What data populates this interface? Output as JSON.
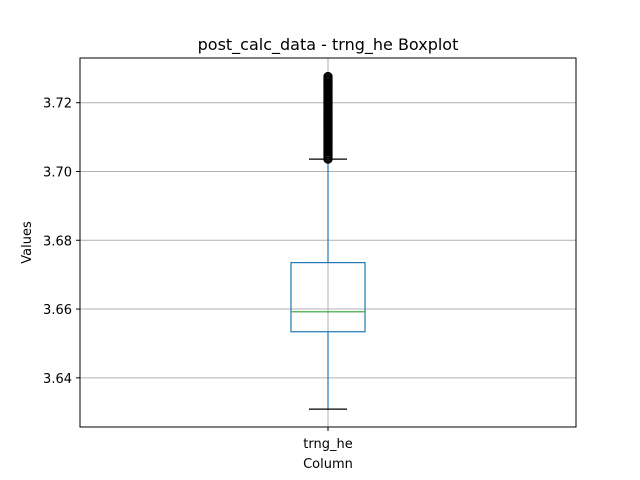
{
  "chart_data": {
    "type": "boxplot",
    "title": "post_calc_data - trng_he Boxplot",
    "xlabel": "Column",
    "ylabel": "Values",
    "categories": [
      "trng_he"
    ],
    "ylim": [
      3.6257,
      3.733
    ],
    "yticks": [
      3.64,
      3.66,
      3.68,
      3.7,
      3.72
    ],
    "ytick_labels": [
      "3.64",
      "3.66",
      "3.68",
      "3.70",
      "3.72"
    ],
    "grid": true,
    "boxes": [
      {
        "category": "trng_he",
        "whisker_low": 3.6309,
        "q1": 3.6534,
        "median": 3.6592,
        "q3": 3.6735,
        "whisker_high": 3.7036,
        "fliers_min": 3.7036,
        "fliers_max": 3.7276
      }
    ],
    "colors": {
      "box": "#1f77b4",
      "median": "#2ca02c",
      "grid": "#b0b0b0",
      "flier": "#000000"
    }
  }
}
